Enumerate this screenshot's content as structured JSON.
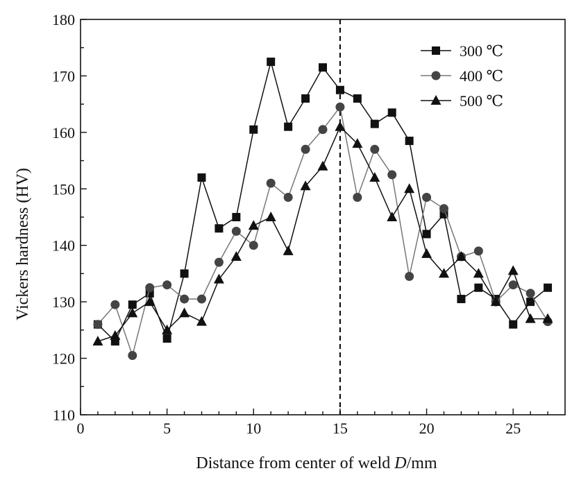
{
  "chart_data": {
    "type": "line",
    "title": "",
    "xlabel": "Distance from center of weld D/mm",
    "ylabel": "Vickers hardness (HV)",
    "xlim": [
      0,
      28
    ],
    "ylim": [
      110,
      180
    ],
    "xticks": [
      0,
      5,
      10,
      15,
      20,
      25
    ],
    "yticks": [
      110,
      120,
      130,
      140,
      150,
      160,
      170,
      180
    ],
    "grid": false,
    "legend_position": "top-right",
    "reference_line": {
      "x": 15,
      "style": "dashed"
    },
    "x": [
      1,
      2,
      3,
      4,
      5,
      6,
      7,
      8,
      9,
      10,
      11,
      12,
      13,
      14,
      15,
      16,
      17,
      18,
      19,
      20,
      21,
      22,
      23,
      24,
      25,
      26,
      27
    ],
    "series": [
      {
        "name": "300 ℃",
        "marker": "square",
        "color": "#111111",
        "line_color": "#111111",
        "values": [
          126,
          123,
          129.5,
          131.5,
          123.5,
          135,
          152,
          143,
          145,
          160.5,
          172.5,
          161,
          166,
          171.5,
          167.5,
          166,
          161.5,
          163.5,
          158.5,
          142,
          145.5,
          130.5,
          132.5,
          130.5,
          126,
          130,
          132.5
        ]
      },
      {
        "name": "400 ℃",
        "marker": "circle",
        "color": "#444444",
        "line_color": "#777777",
        "values": [
          126,
          129.5,
          120.5,
          132.5,
          133,
          130.5,
          130.5,
          137,
          142.5,
          140,
          151,
          148.5,
          157,
          160.5,
          164.5,
          148.5,
          157,
          152.5,
          134.5,
          148.5,
          146.5,
          138,
          139,
          130,
          133,
          131.5,
          126.5
        ]
      },
      {
        "name": "500 ℃",
        "marker": "triangle",
        "color": "#111111",
        "line_color": "#111111",
        "values": [
          123,
          124,
          128,
          130,
          125,
          128,
          126.5,
          134,
          138,
          143.5,
          145,
          139,
          150.5,
          154,
          161,
          158,
          152,
          145,
          150,
          138.5,
          135,
          138,
          135,
          130,
          135.5,
          127,
          127
        ]
      }
    ]
  }
}
